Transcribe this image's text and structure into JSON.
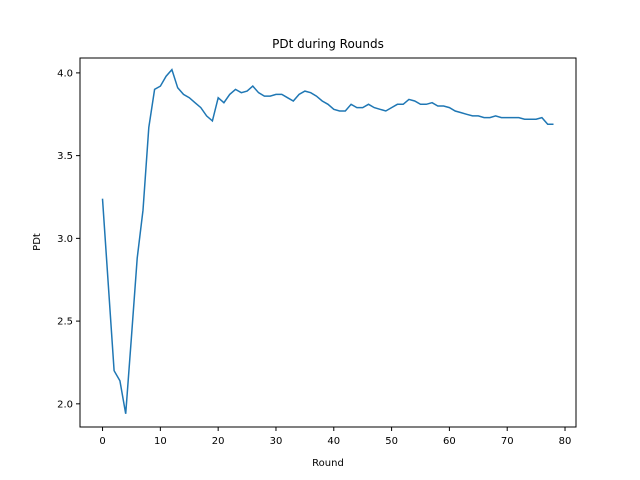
{
  "chart_data": {
    "type": "line",
    "title": "PDt during Rounds",
    "xlabel": "Round",
    "ylabel": "PDt",
    "xlim": [
      -3.9,
      81.9
    ],
    "ylim": [
      1.86,
      4.09
    ],
    "xticks": [
      0,
      10,
      20,
      30,
      40,
      50,
      60,
      70,
      80
    ],
    "yticks": [
      2.0,
      2.5,
      3.0,
      3.5,
      4.0
    ],
    "ytick_labels": [
      "2.0",
      "2.5",
      "3.0",
      "3.5",
      "4.0"
    ],
    "grid": false,
    "legend": "none",
    "series": [
      {
        "color": "#1f77b4",
        "x": [
          0,
          1,
          2,
          3,
          4,
          5,
          6,
          7,
          8,
          9,
          10,
          11,
          12,
          13,
          14,
          15,
          16,
          17,
          18,
          19,
          20,
          21,
          22,
          23,
          24,
          25,
          26,
          27,
          28,
          29,
          30,
          31,
          32,
          33,
          34,
          35,
          36,
          37,
          38,
          39,
          40,
          41,
          42,
          43,
          44,
          45,
          46,
          47,
          48,
          49,
          50,
          51,
          52,
          53,
          54,
          55,
          56,
          57,
          58,
          59,
          60,
          61,
          62,
          63,
          64,
          65,
          66,
          67,
          68,
          69,
          70,
          71,
          72,
          73,
          74,
          75,
          76,
          77,
          78
        ],
        "values": [
          3.24,
          2.72,
          2.2,
          2.14,
          1.94,
          2.4,
          2.88,
          3.17,
          3.67,
          3.9,
          3.92,
          3.98,
          4.02,
          3.91,
          3.87,
          3.85,
          3.82,
          3.79,
          3.74,
          3.71,
          3.85,
          3.82,
          3.87,
          3.9,
          3.88,
          3.89,
          3.92,
          3.88,
          3.86,
          3.86,
          3.87,
          3.87,
          3.85,
          3.83,
          3.87,
          3.89,
          3.88,
          3.86,
          3.83,
          3.81,
          3.78,
          3.77,
          3.77,
          3.81,
          3.79,
          3.79,
          3.81,
          3.79,
          3.78,
          3.77,
          3.79,
          3.81,
          3.81,
          3.84,
          3.83,
          3.81,
          3.81,
          3.82,
          3.8,
          3.8,
          3.79,
          3.77,
          3.76,
          3.75,
          3.74,
          3.74,
          3.73,
          3.73,
          3.74,
          3.73,
          3.73,
          3.73,
          3.73,
          3.72,
          3.72,
          3.72,
          3.73,
          3.69,
          3.69
        ]
      }
    ]
  }
}
